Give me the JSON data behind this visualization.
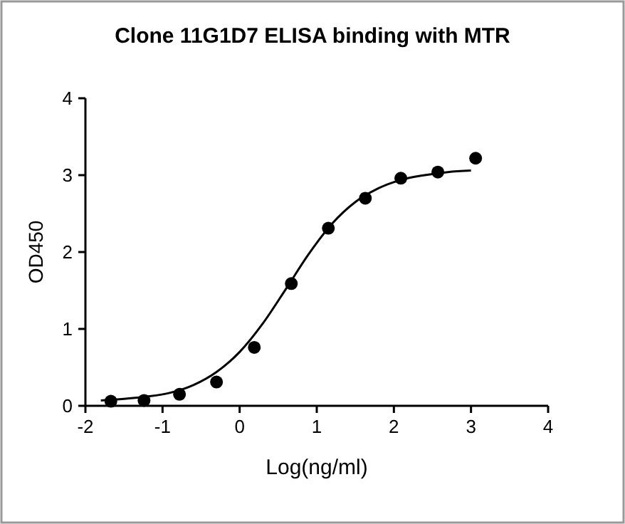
{
  "chart_data": {
    "type": "scatter",
    "title": "Clone 11G1D7 ELISA binding with MTR",
    "xlabel": "Log(ng/ml)",
    "ylabel": "OD450",
    "xlim": [
      -2,
      4
    ],
    "xticks": [
      -2,
      -1,
      0,
      1,
      2,
      3,
      4
    ],
    "ylim": [
      0,
      4
    ],
    "yticks": [
      0,
      1,
      2,
      3,
      4
    ],
    "grid": false,
    "series": [
      {
        "color": "#000000",
        "marker": "circle",
        "x": [
          -1.67,
          -1.24,
          -0.78,
          -0.3,
          0.19,
          0.67,
          1.15,
          1.63,
          2.09,
          2.57,
          3.06
        ],
        "values": [
          0.06,
          0.07,
          0.15,
          0.31,
          0.76,
          1.59,
          2.31,
          2.7,
          2.96,
          3.04,
          3.22
        ]
      },
      {
        "type": "line",
        "color": "#000000",
        "marker": "none",
        "line_style": "solid",
        "x": [
          -1.8,
          -1.5,
          -1.2,
          -0.9,
          -0.6,
          -0.3,
          0,
          0.3,
          0.6,
          0.9,
          1.2,
          1.5,
          1.8,
          2.1,
          2.4,
          2.7,
          3.0
        ],
        "values": [
          0.07,
          0.09,
          0.12,
          0.17,
          0.27,
          0.44,
          0.7,
          1.07,
          1.52,
          1.98,
          2.37,
          2.65,
          2.83,
          2.94,
          3.0,
          3.04,
          3.06
        ]
      }
    ]
  }
}
